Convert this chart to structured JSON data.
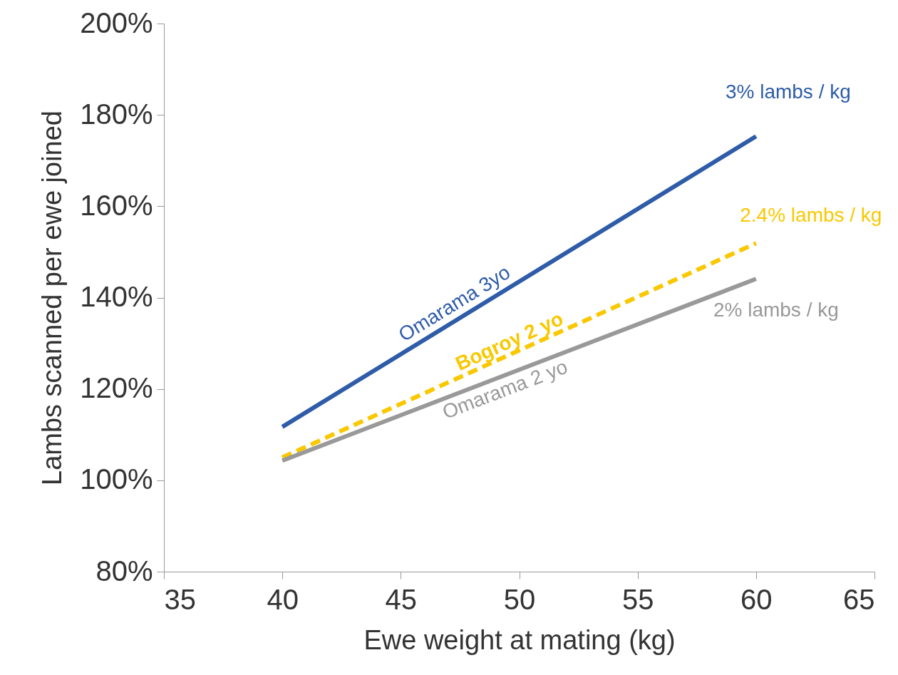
{
  "chart_data": {
    "type": "line",
    "xlabel": "Ewe weight at mating (kg)",
    "ylabel": "Lambs scanned per ewe joined",
    "x": [
      40,
      60
    ],
    "series": [
      {
        "name": "Omarama 3yo",
        "color": "#2e5ca8",
        "values": [
          111.7,
          175.3
        ]
      },
      {
        "name": "Bogroy 2 yo",
        "color": "#f9c800",
        "values": [
          105.0,
          151.9
        ],
        "line_style": "dashed"
      },
      {
        "name": "Omarama 2 yo",
        "color": "#999999",
        "values": [
          104.3,
          144.1
        ]
      }
    ],
    "annotations": [
      "3%  lambs / kg",
      "2.4%  lambs / kg",
      "2% lambs / kg"
    ],
    "xlim": [
      35,
      65
    ],
    "xticks": [
      35,
      40,
      45,
      50,
      55,
      60,
      65
    ],
    "ylim": [
      80,
      200
    ],
    "yticks": [
      {
        "value": 80,
        "label": "80%"
      },
      {
        "value": 100,
        "label": "100%"
      },
      {
        "value": 120,
        "label": "120%"
      },
      {
        "value": 140,
        "label": "140%"
      },
      {
        "value": 160,
        "label": "160%"
      },
      {
        "value": 180,
        "label": "180%"
      },
      {
        "value": 200,
        "label": "200%"
      }
    ],
    "marker": "none",
    "line_style": "solid"
  }
}
